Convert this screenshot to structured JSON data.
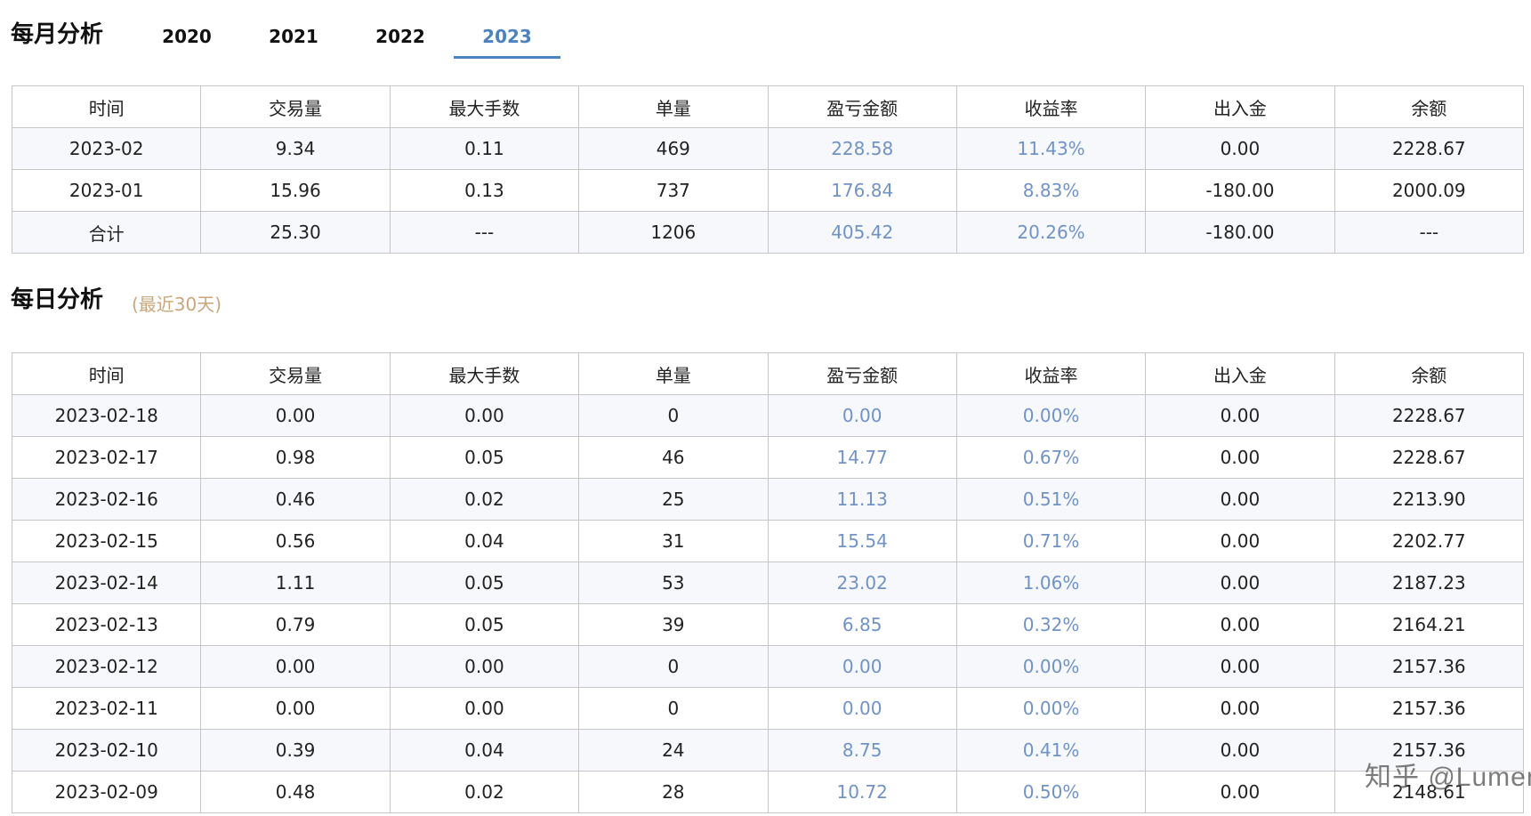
{
  "monthly": {
    "title": "每月分析",
    "tabs": [
      "2020",
      "2021",
      "2022",
      "2023"
    ],
    "active_tab": "2023",
    "headers": [
      "时间",
      "交易量",
      "最大手数",
      "单量",
      "盈亏金额",
      "收益率",
      "出入金",
      "余额"
    ],
    "rows": [
      [
        "2023-02",
        "9.34",
        "0.11",
        "469",
        "228.58",
        "11.43%",
        "0.00",
        "2228.67"
      ],
      [
        "2023-01",
        "15.96",
        "0.13",
        "737",
        "176.84",
        "8.83%",
        "-180.00",
        "2000.09"
      ],
      [
        "合计",
        "25.30",
        "---",
        "1206",
        "405.42",
        "20.26%",
        "-180.00",
        "---"
      ]
    ]
  },
  "daily": {
    "title": "每日分析",
    "subtitle": "(最近30天)",
    "headers": [
      "时间",
      "交易量",
      "最大手数",
      "单量",
      "盈亏金额",
      "收益率",
      "出入金",
      "余额"
    ],
    "rows": [
      [
        "2023-02-18",
        "0.00",
        "0.00",
        "0",
        "0.00",
        "0.00%",
        "0.00",
        "2228.67"
      ],
      [
        "2023-02-17",
        "0.98",
        "0.05",
        "46",
        "14.77",
        "0.67%",
        "0.00",
        "2228.67"
      ],
      [
        "2023-02-16",
        "0.46",
        "0.02",
        "25",
        "11.13",
        "0.51%",
        "0.00",
        "2213.90"
      ],
      [
        "2023-02-15",
        "0.56",
        "0.04",
        "31",
        "15.54",
        "0.71%",
        "0.00",
        "2202.77"
      ],
      [
        "2023-02-14",
        "1.11",
        "0.05",
        "53",
        "23.02",
        "1.06%",
        "0.00",
        "2187.23"
      ],
      [
        "2023-02-13",
        "0.79",
        "0.05",
        "39",
        "6.85",
        "0.32%",
        "0.00",
        "2164.21"
      ],
      [
        "2023-02-12",
        "0.00",
        "0.00",
        "0",
        "0.00",
        "0.00%",
        "0.00",
        "2157.36"
      ],
      [
        "2023-02-11",
        "0.00",
        "0.00",
        "0",
        "0.00",
        "0.00%",
        "0.00",
        "2157.36"
      ],
      [
        "2023-02-10",
        "0.39",
        "0.04",
        "24",
        "8.75",
        "0.41%",
        "0.00",
        "2157.36"
      ],
      [
        "2023-02-09",
        "0.48",
        "0.02",
        "28",
        "10.72",
        "0.50%",
        "0.00",
        "2148.61"
      ]
    ]
  },
  "watermark": "知乎 @Lumen",
  "colors": {
    "accent": "#4a82c2",
    "profit_text": "#6f93c9",
    "subtitle": "#c9a77a",
    "row_stripe": "#f6f8fb"
  }
}
